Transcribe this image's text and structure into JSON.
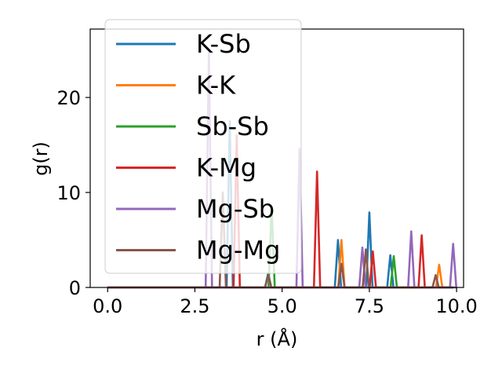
{
  "chart_data": {
    "type": "line",
    "title": "",
    "xlabel": "r (Å)",
    "ylabel": "g(r)",
    "xlim": [
      -0.5,
      10.2
    ],
    "ylim": [
      0,
      27.2
    ],
    "xticks": [
      0.0,
      2.5,
      5.0,
      7.5,
      10.0
    ],
    "xtick_labels": [
      "0.0",
      "2.5",
      "5.0",
      "7.5",
      "10.0"
    ],
    "yticks": [
      0,
      10,
      20
    ],
    "ytick_labels": [
      "0",
      "10",
      "20"
    ],
    "grid": false,
    "legend_position": "upper-left",
    "series": [
      {
        "name": "K-Sb",
        "color": "#1f77b4",
        "peaks": [
          [
            3.5,
            17.5
          ],
          [
            4.6,
            1.5
          ],
          [
            6.6,
            5.0
          ],
          [
            7.5,
            7.9
          ],
          [
            8.1,
            3.4
          ]
        ]
      },
      {
        "name": "K-K",
        "color": "#ff7f0e",
        "peaks": [
          [
            6.7,
            5.0
          ],
          [
            9.5,
            2.4
          ]
        ]
      },
      {
        "name": "Sb-Sb",
        "color": "#2ca02c",
        "peaks": [
          [
            4.7,
            8.5
          ],
          [
            8.2,
            3.3
          ]
        ]
      },
      {
        "name": "K-Mg",
        "color": "#d62728",
        "peaks": [
          [
            3.7,
            16.0
          ],
          [
            6.0,
            12.2
          ],
          [
            7.6,
            3.8
          ],
          [
            9.0,
            5.5
          ]
        ]
      },
      {
        "name": "Mg-Sb",
        "color": "#9467bd",
        "peaks": [
          [
            2.9,
            24.8
          ],
          [
            5.5,
            14.6
          ],
          [
            7.3,
            4.2
          ],
          [
            8.7,
            5.9
          ],
          [
            9.9,
            4.6
          ]
        ]
      },
      {
        "name": "Mg-Mg",
        "color": "#8c564b",
        "peaks": [
          [
            3.3,
            10.0
          ],
          [
            4.6,
            1.3
          ],
          [
            6.7,
            2.5
          ],
          [
            7.4,
            4.0
          ],
          [
            9.4,
            1.3
          ]
        ]
      }
    ]
  }
}
